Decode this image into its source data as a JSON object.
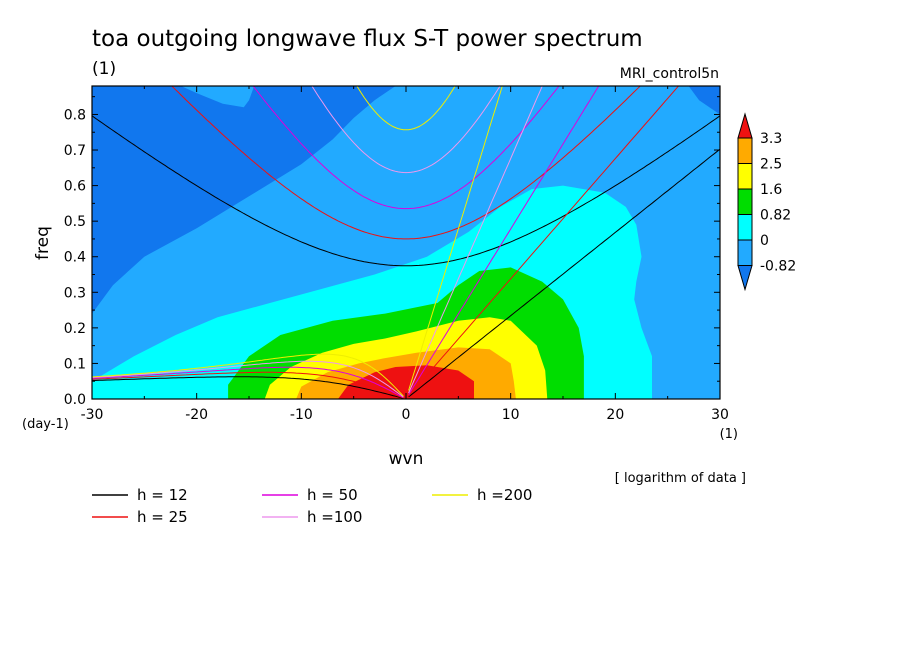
{
  "chart_data": {
    "type": "heatmap",
    "title": "toa outgoing longwave flux S-T power spectrum",
    "subtitle": "MRI_control5n",
    "xlabel": "wvn",
    "ylabel": "freq",
    "xunit": "(1)",
    "yunit": "(day-1)",
    "yunit_top": "(1)",
    "note": "[ logarithm of data ]",
    "xlim": [
      -30,
      30
    ],
    "ylim": [
      0.0,
      0.88
    ],
    "xticks": [
      "-30",
      "-20",
      "-10",
      "0",
      "10",
      "20",
      "30"
    ],
    "xtick_values": [
      -30,
      -20,
      -10,
      0,
      10,
      20,
      30
    ],
    "yticks": [
      "0.0",
      "0.1",
      "0.2",
      "0.3",
      "0.4",
      "0.5",
      "0.6",
      "0.7",
      "0.8"
    ],
    "ytick_values": [
      0.0,
      0.1,
      0.2,
      0.3,
      0.4,
      0.5,
      0.6,
      0.7,
      0.8
    ],
    "colorbar": {
      "labels": [
        "3.3",
        "2.5",
        "1.6",
        "0.82",
        "0",
        "-0.82"
      ],
      "colors": [
        "#ee1111",
        "#ffaa00",
        "#ffff00",
        "#00dd00",
        "#00ffff",
        "#22aaff",
        "#1177ee"
      ]
    },
    "fill_colors": {
      "lvl0": "#1177ee",
      "lvl1": "#22aaff",
      "lvl2": "#00ffff",
      "lvl3": "#00dd00",
      "lvl4": "#ffff00",
      "lvl5": "#ffaa00",
      "lvl6": "#ee1111"
    },
    "dispersion_curves": [
      {
        "label": "h = 12",
        "h": 12,
        "color": "#000000"
      },
      {
        "label": "h = 25",
        "h": 25,
        "color": "#ee1111"
      },
      {
        "label": "h = 50",
        "h": 50,
        "color": "#dd00dd"
      },
      {
        "label": "h =100",
        "h": 100,
        "color": "#ee99ee"
      },
      {
        "label": "h =200",
        "h": 200,
        "color": "#eeee00"
      }
    ]
  }
}
